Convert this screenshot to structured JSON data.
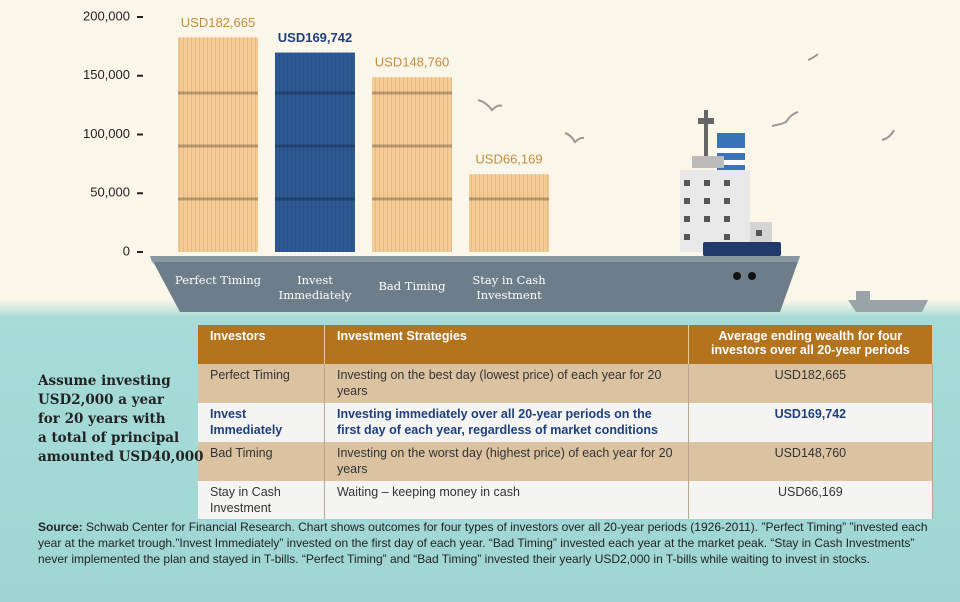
{
  "chart_data": {
    "type": "bar",
    "categories": [
      "Perfect Timing",
      "Invest Immediately",
      "Bad Timing",
      "Stay in Cash Investment"
    ],
    "values": [
      182665,
      169742,
      148760,
      66169
    ],
    "value_labels": [
      "USD182,665",
      "USD169,742",
      "USD148,760",
      "USD66,169"
    ],
    "colors": [
      "#f5cb93",
      "#2d5893",
      "#f5cb93",
      "#f5cb93"
    ],
    "label_colors": [
      "#c48c3c",
      "#1f3f7c",
      "#c48c3c",
      "#c48c3c"
    ],
    "ylim": [
      0,
      200000
    ],
    "yticks": [
      0,
      {
        "value": 50000,
        "label": "50,000"
      },
      {
        "value": 100000,
        "label": "100,000"
      },
      {
        "value": 150000,
        "label": "150,000"
      },
      {
        "value": 200000,
        "label": "200,000"
      }
    ]
  },
  "note": [
    "Assume investing",
    "USD2,000 a year",
    "for 20 years with",
    "a total of principal",
    "amounted USD40,000"
  ],
  "table": {
    "header": [
      "Investors",
      "Investment Strategies",
      "Average ending wealth for four investors over all 20-year periods"
    ],
    "rows": [
      [
        "Perfect Timing",
        "Investing on the best day (lowest price) of each year for 20 years",
        "USD182,665"
      ],
      [
        "Invest Immediately",
        "Investing immediately over all 20-year periods on the first day of each year, regardless of market conditions",
        "USD169,742"
      ],
      [
        "Bad Timing",
        "Investing on the worst day (highest price) of each year for 20 years",
        "USD148,760"
      ],
      [
        "Stay in Cash Investment",
        "Waiting – keeping money in cash",
        "USD66,169"
      ]
    ]
  },
  "source": {
    "label": "Source:",
    "text": "Schwab Center for Financial Research. Chart shows outcomes for four types of investors over all 20-year periods (1926-2011). ”Perfect Timing” ”invested each year at the market trough.”Invest Immediately” invested on the first day of each year. “Bad Timing” invested each year at the market peak. “Stay in Cash Investments” never implemented the plan and stayed in T-bills. “Perfect Timing” and “Bad Timing” invested their yearly USD2,000 in T-bills while waiting to invest in stocks."
  }
}
